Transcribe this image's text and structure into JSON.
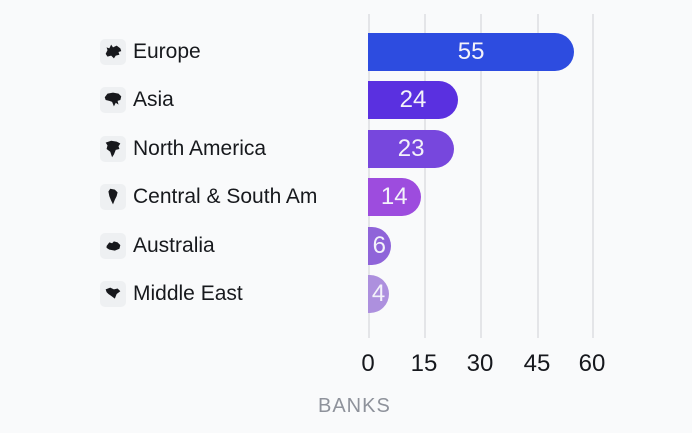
{
  "chart_data": {
    "type": "bar",
    "orientation": "horizontal",
    "categories": [
      "Europe",
      "Asia",
      "North America",
      "Central & South Am",
      "Australia",
      "Middle East"
    ],
    "values": [
      55,
      24,
      23,
      14,
      6,
      4
    ],
    "bar_colors": [
      "#2d4ce0",
      "#5a30e0",
      "#7747dd",
      "#9d4cde",
      "#8f64d9",
      "#ad90de"
    ],
    "title": "",
    "xlabel": "BANKS",
    "ylabel": "",
    "xlim": [
      0,
      60
    ],
    "x_ticks": [
      0,
      15,
      30,
      45,
      60
    ],
    "grid": true,
    "legend": false,
    "value_labels": "inside-bar"
  },
  "rows": [
    {
      "label": "Europe",
      "value": "55",
      "color": "#2d4ce0",
      "icon": "europe-icon"
    },
    {
      "label": "Asia",
      "value": "24",
      "color": "#5a30e0",
      "icon": "asia-icon"
    },
    {
      "label": "North America",
      "value": "23",
      "color": "#7747dd",
      "icon": "north-america-icon"
    },
    {
      "label": "Central & South Am",
      "value": "14",
      "color": "#9d4cde",
      "icon": "south-america-icon"
    },
    {
      "label": "Australia",
      "value": "6",
      "color": "#8f64d9",
      "icon": "australia-icon"
    },
    {
      "label": "Middle East",
      "value": "4",
      "color": "#ad90de",
      "icon": "middle-east-icon"
    }
  ],
  "axis": {
    "label": "BANKS",
    "ticks": [
      "0",
      "15",
      "30",
      "45",
      "60"
    ]
  },
  "colors": {
    "background": "#f9fafb",
    "gridline": "#e4e5e8",
    "label_text": "#17191d",
    "tick_text": "#16181d",
    "axis_label_text": "#8e929b",
    "value_text": "#f3f2fa",
    "icon_fill": "#17181c"
  }
}
